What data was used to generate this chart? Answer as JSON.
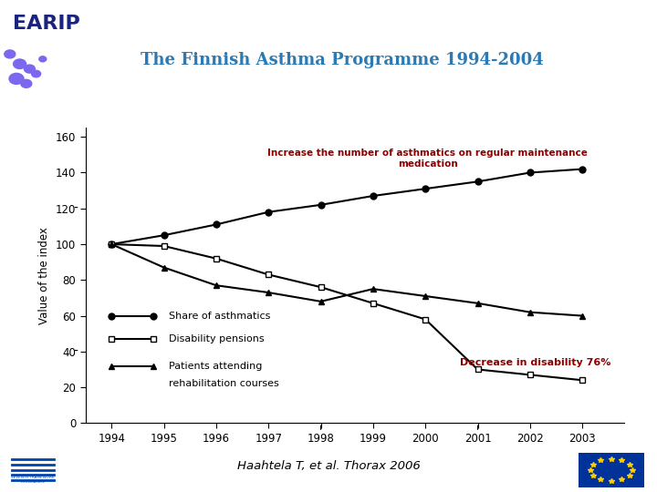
{
  "title": "The Finnish Asthma Programme 1994-2004",
  "title_color": "#2a7ab5",
  "ylabel": "Value of the index",
  "years": [
    1994,
    1995,
    1996,
    1997,
    1998,
    1999,
    2000,
    2001,
    2002,
    2003
  ],
  "share_of_asthmatics": [
    100,
    105,
    111,
    118,
    122,
    127,
    131,
    135,
    140,
    142
  ],
  "disability_pensions": [
    100,
    99,
    92,
    83,
    76,
    67,
    58,
    30,
    27,
    24
  ],
  "rehabilitation_courses": [
    100,
    87,
    77,
    73,
    68,
    75,
    71,
    67,
    62,
    60
  ],
  "line_color": "#000000",
  "annotation_increase": "Increase the number of asthmatics on regular maintenance\nmedication",
  "annotation_decrease": "Decrease in disability 76%",
  "annotation_color": "#8b0000",
  "source_text": "Haahtela T, et al. Thorax 2006",
  "ylim": [
    0,
    165
  ],
  "yticks": [
    0,
    20,
    40,
    60,
    80,
    100,
    120,
    140,
    160
  ],
  "background_color": "#ffffff",
  "legend1": "Share of asthmatics",
  "legend2": "Disability pensions",
  "legend3_line1": "Patients attending",
  "legend3_line2": "rehabilitation courses"
}
